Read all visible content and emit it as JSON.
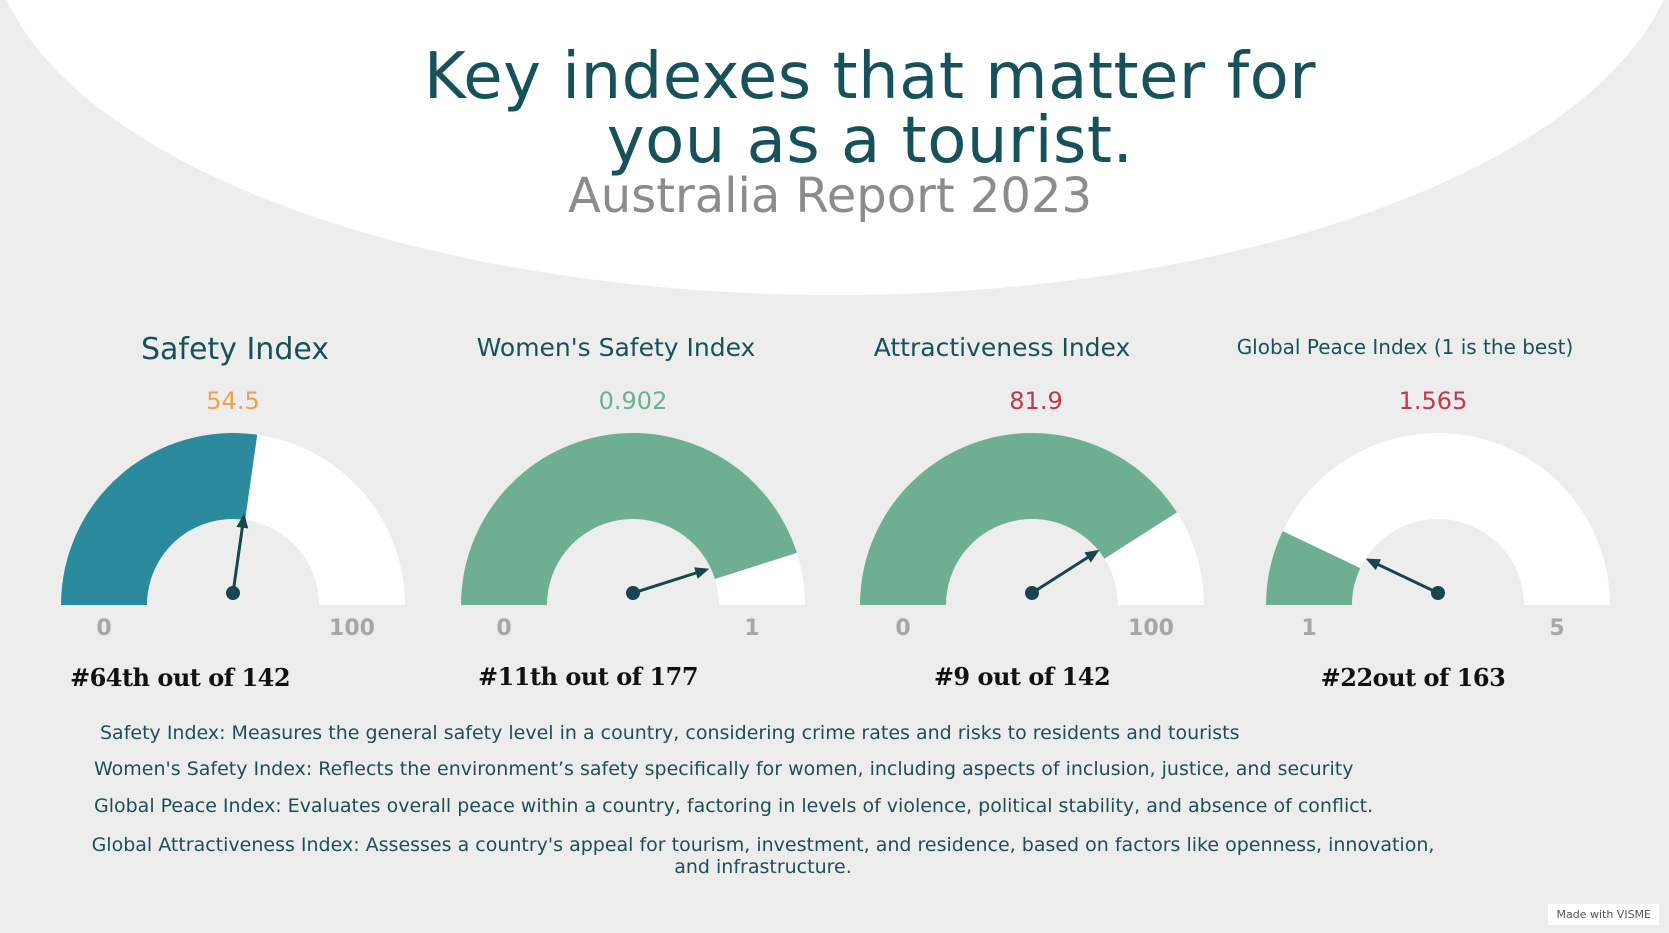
{
  "header": {
    "title_line1": "Key indexes that matter for",
    "title_line2": "you as a tourist.",
    "subtitle": "Australia Report 2023"
  },
  "colors": {
    "title": "#17525b",
    "teal_fill": "#2b8a9e",
    "green_fill": "#6faf91",
    "needle": "#17464d",
    "track": "#ffffff",
    "tick_label": "#a6a6a6"
  },
  "chart_data": [
    {
      "type": "gauge",
      "title": "Safety Index",
      "value": 54.5,
      "value_label": "54.5",
      "min": 0,
      "max": 100,
      "min_label": "0",
      "max_label": "100",
      "rank": "#64th out of 142",
      "fill_color": "#2b8a9e",
      "value_color": "#f0a04b"
    },
    {
      "type": "gauge",
      "title": "Women's Safety Index",
      "value": 0.902,
      "value_label": "0.902",
      "min": 0,
      "max": 1,
      "min_label": "0",
      "max_label": "1",
      "rank": "#11th out of 177",
      "fill_color": "#6faf91",
      "value_color": "#6faf91"
    },
    {
      "type": "gauge",
      "title": "Attractiveness Index",
      "value": 81.9,
      "value_label": "81.9",
      "min": 0,
      "max": 100,
      "min_label": "0",
      "max_label": "100",
      "rank": "#9 out of 142",
      "fill_color": "#6faf91",
      "value_color": "#c0384f"
    },
    {
      "type": "gauge",
      "title": "Global Peace Index (1 is the best)",
      "value": 1.565,
      "value_label": "1.565",
      "min": 1,
      "max": 5,
      "min_label": "1",
      "max_label": "5",
      "rank": "#22out of 163",
      "fill_color": "#6faf91",
      "value_color": "#c0384f"
    }
  ],
  "descriptions": [
    "Safety Index: Measures the general safety level in a country, considering crime rates and risks to residents and tourists",
    "Women's Safety Index: Reflects the environment’s safety specifically for women, including aspects of inclusion, justice, and security",
    "Global Peace Index: Evaluates overall peace within a country, factoring in levels of violence, political stability, and absence of conflict.",
    "Global Attractiveness Index: Assesses a country's appeal for tourism, investment, and residence, based on factors like openness, innovation, and infrastructure."
  ],
  "watermark": "Made with VISME"
}
